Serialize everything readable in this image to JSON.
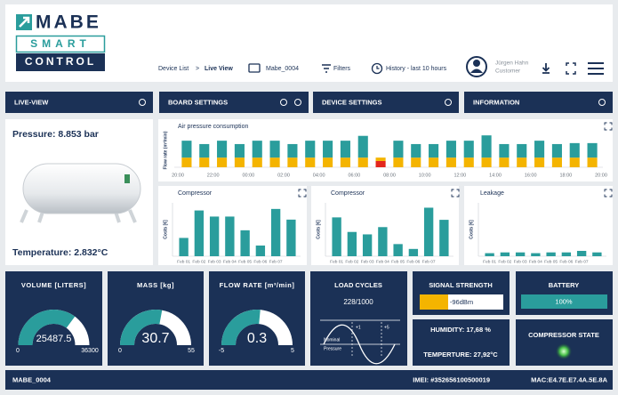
{
  "header": {
    "logo": [
      "MABE",
      "SMART",
      "CONTROL"
    ],
    "breadcrumb": [
      "Device List",
      ">",
      "Live View"
    ],
    "device": "Mabe_0004",
    "filters": "Filters",
    "history": "History - last 10 hours",
    "user": "Jürgen Hahn",
    "role": "Customer"
  },
  "panels": [
    "LIVE-VIEW",
    "BOARD SETTINGS",
    "DEVICE SETTINGS",
    "INFORMATION"
  ],
  "live_view": {
    "pressure": "Pressure: 8.853 bar",
    "temperature": "Temperature: 2.832°C"
  },
  "chart_data": [
    {
      "type": "bar",
      "stacked": true,
      "title": "Air pressure consumption",
      "y_label": "Flow rate (m³/min)",
      "x_labels": [
        "20:00",
        "22:00",
        "00:00",
        "02:00",
        "04:00",
        "06:00",
        "08:00",
        "10:00",
        "12:00",
        "14:00",
        "16:00",
        "18:00",
        "20:00"
      ],
      "ylim": [
        0,
        7
      ],
      "series": [
        {
          "color": "#e3261c",
          "values": [
            null,
            null,
            null,
            null,
            null,
            null,
            null,
            null,
            null,
            null,
            null,
            1.3,
            null,
            null,
            null,
            null,
            null,
            null,
            null,
            null,
            null,
            null,
            null,
            null
          ]
        },
        {
          "color": "#f4b400",
          "values": [
            2,
            2,
            2,
            2,
            2,
            2,
            2,
            2,
            2,
            2,
            2,
            0.7,
            2,
            2,
            2,
            2,
            2,
            2,
            2,
            2,
            2,
            2,
            2,
            2
          ]
        },
        {
          "color": "#2a9d9c",
          "values": [
            3.5,
            2.8,
            3.5,
            2.8,
            3.5,
            3.5,
            2.8,
            3.5,
            3.5,
            3.5,
            4.5,
            null,
            3.5,
            2.8,
            2.8,
            3.5,
            3.5,
            4.6,
            2.8,
            2.8,
            3.5,
            2.8,
            3.0,
            3.0
          ]
        }
      ]
    },
    {
      "type": "bar",
      "title": "Compressor",
      "y_label": "Costs [€]",
      "color": "#2a9d9c",
      "categories": [
        "Feb 01",
        "Feb 02",
        "Feb 03",
        "Feb 04",
        "Feb 05",
        "Feb 06",
        "Feb 07",
        null
      ],
      "values": [
        1.2,
        3.0,
        2.6,
        2.6,
        1.7,
        0.7,
        3.1,
        2.4
      ],
      "ylim": [
        0,
        3.5
      ]
    },
    {
      "type": "bar",
      "title": "Compressor",
      "y_label": "Costs [€]",
      "color": "#2a9d9c",
      "categories": [
        "Feb 01",
        "Feb 02",
        "Feb 03",
        "Feb 04",
        "Feb 05",
        "Feb 06",
        "Feb 07",
        null
      ],
      "values": [
        1.6,
        1.0,
        0.9,
        1.2,
        0.5,
        0.3,
        2.0,
        1.5
      ],
      "ylim": [
        0,
        2.2
      ]
    },
    {
      "type": "bar",
      "title": "Leakage",
      "y_label": "Costs [€]",
      "color": "#2a9d9c",
      "categories": [
        "Feb 01",
        "Feb 02",
        "Feb 03",
        "Feb 04",
        "Feb 05",
        "Feb 06",
        "Feb 07",
        null
      ],
      "values": [
        0.2,
        0.25,
        0.25,
        0.2,
        0.25,
        0.25,
        0.35,
        0.25
      ],
      "ylim": [
        0,
        3.5
      ]
    }
  ],
  "gauges": [
    {
      "title": "VOLUME [LITERS]",
      "value": 25487.5,
      "min": 0,
      "max": 36300
    },
    {
      "title": "MASS [kg]",
      "value": 30.7,
      "min": 0,
      "max": 55
    },
    {
      "title": "FLOW RATE [m³/min]",
      "value": 0.3,
      "min": -5,
      "max": 5
    }
  ],
  "load_cycles": {
    "title": "LOAD CYCLES",
    "value": "228/1000",
    "labels": [
      "+1",
      "+5",
      "Nominal",
      "Pressure"
    ]
  },
  "signal": {
    "title": "SIGNAL STRENGTH",
    "value": "-96dBm"
  },
  "humidity": "HUMIDITY: 17,68 %",
  "temperature": "TEMPERTURE: 27,92°C",
  "battery": {
    "title": "BATTERY",
    "value": "100%"
  },
  "compressor_state": "COMPRESSOR STATE",
  "footer": {
    "device": "MABE_0004",
    "imei": "IMEI: #352656100500019",
    "mac": "MAC:E4.7E.E7.4A.5E.8A"
  }
}
